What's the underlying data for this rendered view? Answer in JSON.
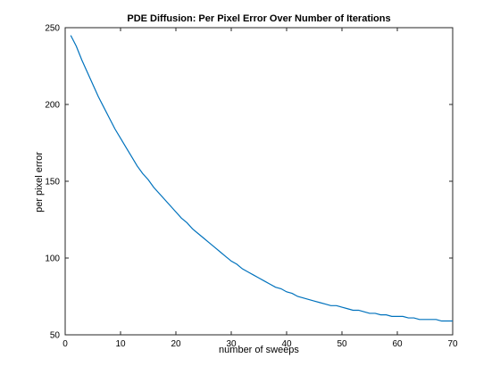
{
  "chart_data": {
    "type": "line",
    "title": "PDE Diffusion: Per Pixel Error Over Number of Iterations",
    "xlabel": "number of sweeps",
    "ylabel": "per pixel error",
    "xlim": [
      0,
      70
    ],
    "ylim": [
      50,
      250
    ],
    "xticks": [
      0,
      10,
      20,
      30,
      40,
      50,
      60,
      70
    ],
    "yticks": [
      50,
      100,
      150,
      200,
      250
    ],
    "grid": false,
    "line_color": "#0072BD",
    "series": [
      {
        "x": [
          1,
          2,
          3,
          4,
          5,
          6,
          7,
          8,
          9,
          10,
          11,
          12,
          13,
          14,
          15,
          16,
          17,
          18,
          19,
          20,
          21,
          22,
          23,
          24,
          25,
          26,
          27,
          28,
          29,
          30,
          31,
          32,
          33,
          34,
          35,
          36,
          37,
          38,
          39,
          40,
          41,
          42,
          43,
          44,
          45,
          46,
          47,
          48,
          49,
          50,
          51,
          52,
          53,
          54,
          55,
          56,
          57,
          58,
          59,
          60,
          61,
          62,
          63,
          64,
          65,
          66,
          67,
          68,
          69,
          70
        ],
        "values": [
          245,
          238,
          229,
          221,
          213,
          205,
          198,
          191,
          184,
          178,
          172,
          166,
          160,
          155,
          151,
          146,
          142,
          138,
          134,
          130,
          126,
          123,
          119,
          116,
          113,
          110,
          107,
          104,
          101,
          98,
          96,
          93,
          91,
          89,
          87,
          85,
          83,
          81,
          80,
          78,
          77,
          75,
          74,
          73,
          72,
          71,
          70,
          69,
          69,
          68,
          67,
          66,
          66,
          65,
          64,
          64,
          63,
          63,
          62,
          62,
          62,
          61,
          61,
          60,
          60,
          60,
          60,
          59,
          59,
          59
        ]
      }
    ]
  }
}
